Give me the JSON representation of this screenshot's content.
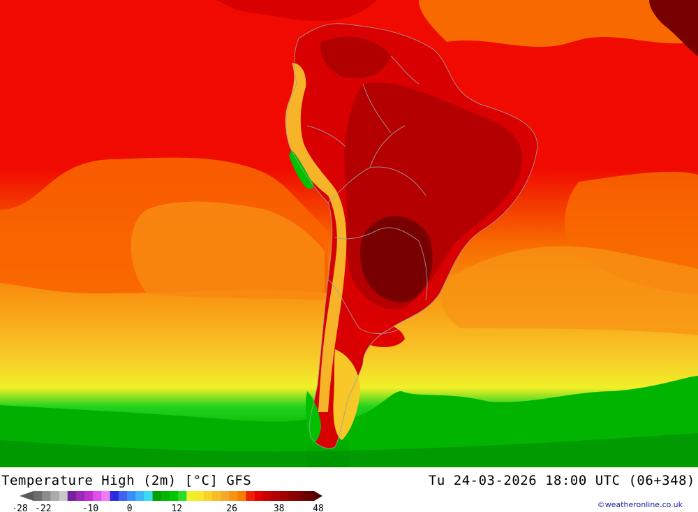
{
  "map": {
    "title": "Temperature High (2m) [°C] GFS",
    "datetime": "Tu 24-03-2026 18:00 UTC (06+348)",
    "credit": "©weatheronline.co.uk",
    "region": "South America and surrounding oceans"
  },
  "legend": {
    "colors": [
      "#6e6e6e",
      "#8c8c8c",
      "#aaaaaa",
      "#c8c8c8",
      "#7a1fa0",
      "#9b2ab8",
      "#c030d0",
      "#e050e8",
      "#f07cf8",
      "#2a2ae0",
      "#3c64f0",
      "#3c8cf8",
      "#3cb4f8",
      "#3cdcf8",
      "#00a000",
      "#00b400",
      "#00c800",
      "#28dc28",
      "#f0f028",
      "#f8e828",
      "#f8d228",
      "#f8bc28",
      "#f8a828",
      "#f89414",
      "#f87c00",
      "#f02000",
      "#e00000",
      "#c80000",
      "#b40000",
      "#a00000",
      "#8c0000",
      "#780000",
      "#640000"
    ],
    "ticks": [
      {
        "label": "-28",
        "value": -28
      },
      {
        "label": "-22",
        "value": -22
      },
      {
        "label": "-10",
        "value": -10
      },
      {
        "label": "0",
        "value": 0
      },
      {
        "label": "12",
        "value": 12
      },
      {
        "label": "26",
        "value": 26
      },
      {
        "label": "38",
        "value": 38
      },
      {
        "label": "48",
        "value": 48
      }
    ]
  }
}
